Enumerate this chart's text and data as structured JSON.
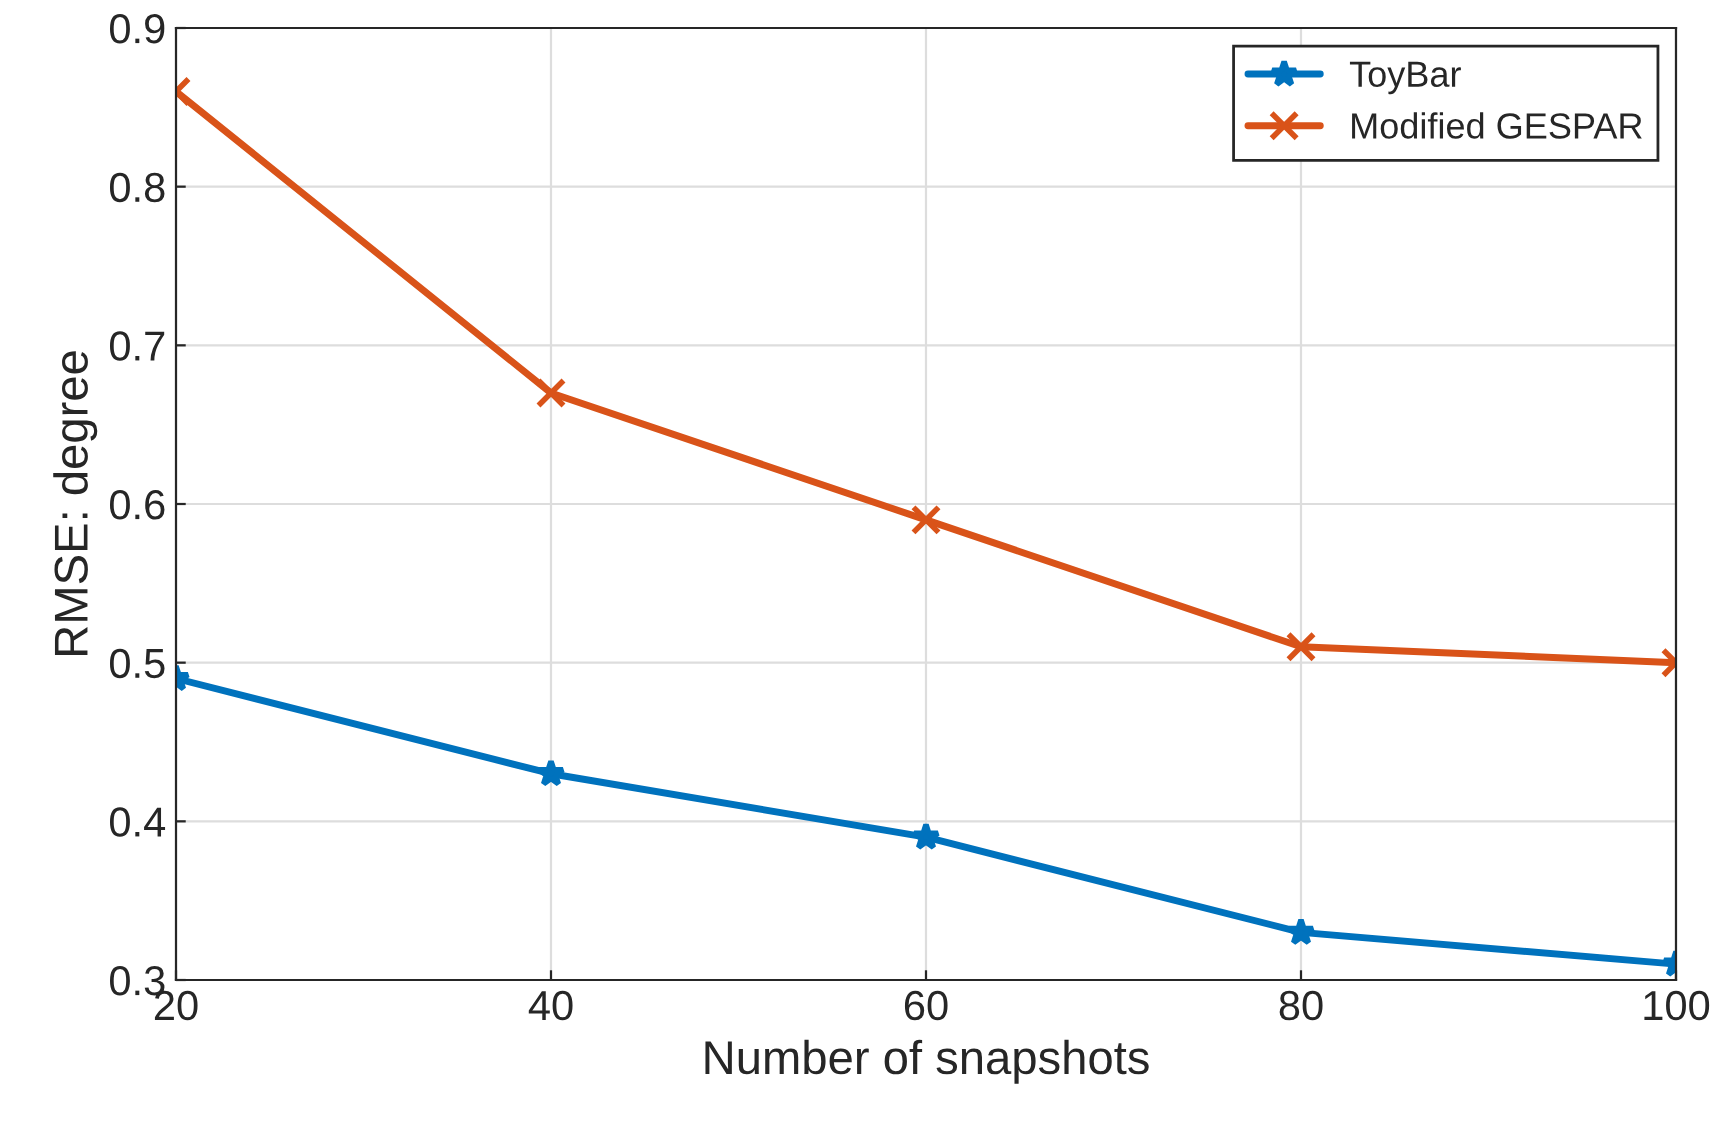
{
  "chart_data": {
    "type": "line",
    "xlabel": "Number of snapshots",
    "ylabel": "RMSE: degree",
    "x": [
      20,
      40,
      60,
      80,
      100
    ],
    "series": [
      {
        "name": "ToyBar",
        "color": "#0072bd",
        "marker": "star",
        "values": [
          0.49,
          0.43,
          0.39,
          0.33,
          0.31
        ]
      },
      {
        "name": "Modified GESPAR",
        "color": "#d95319",
        "marker": "cross",
        "values": [
          0.86,
          0.67,
          0.59,
          0.51,
          0.5
        ]
      }
    ],
    "xlim": [
      20,
      100
    ],
    "xticks": [
      20,
      40,
      60,
      80,
      100
    ],
    "ylim": [
      0.3,
      0.9
    ],
    "yticks": [
      0.3,
      0.4,
      0.5,
      0.6,
      0.7,
      0.8,
      0.9
    ],
    "grid": true,
    "legend": "top right",
    "line_style": "solid"
  }
}
